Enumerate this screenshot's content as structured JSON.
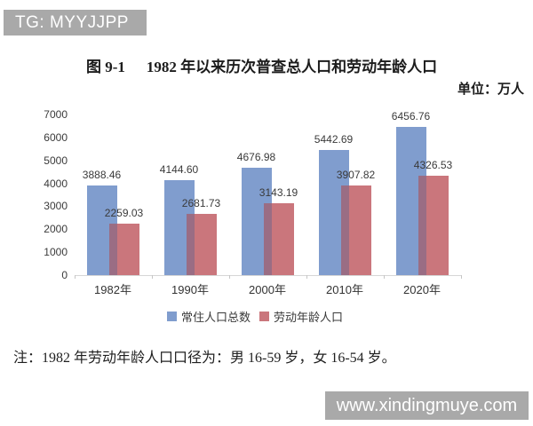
{
  "banners": {
    "top": "TG: MYYJJPP",
    "bottom": "www.xindingmuye.com"
  },
  "figure": {
    "title_prefix": "图 9-1",
    "title": "1982 年以来历次普查总人口和劳动年龄人口",
    "unit": "单位：万人",
    "note": "注：1982 年劳动年龄人口口径为：男 16-59 岁，女 16-54 岁。"
  },
  "chart_data": {
    "type": "bar",
    "categories": [
      "1982年",
      "1990年",
      "2000年",
      "2010年",
      "2020年"
    ],
    "series": [
      {
        "name": "常住人口总数",
        "color": "#809dce",
        "values": [
          3888.46,
          4144.6,
          4676.98,
          5442.69,
          6456.76
        ]
      },
      {
        "name": "劳动年龄人口",
        "color": "#ca767c",
        "values": [
          2259.03,
          2681.73,
          3143.19,
          3907.82,
          4326.53
        ]
      }
    ],
    "title": "1982 年以来历次普查总人口和劳动年龄人口",
    "unit_label": "万人",
    "xlabel": "",
    "ylabel": "",
    "ylim": [
      0,
      7000
    ],
    "ytick_step": 1000,
    "grid": false,
    "legend_position": "bottom",
    "value_labels": true,
    "bar_style": "overlapping",
    "overlap_color": "#9a6d84"
  }
}
